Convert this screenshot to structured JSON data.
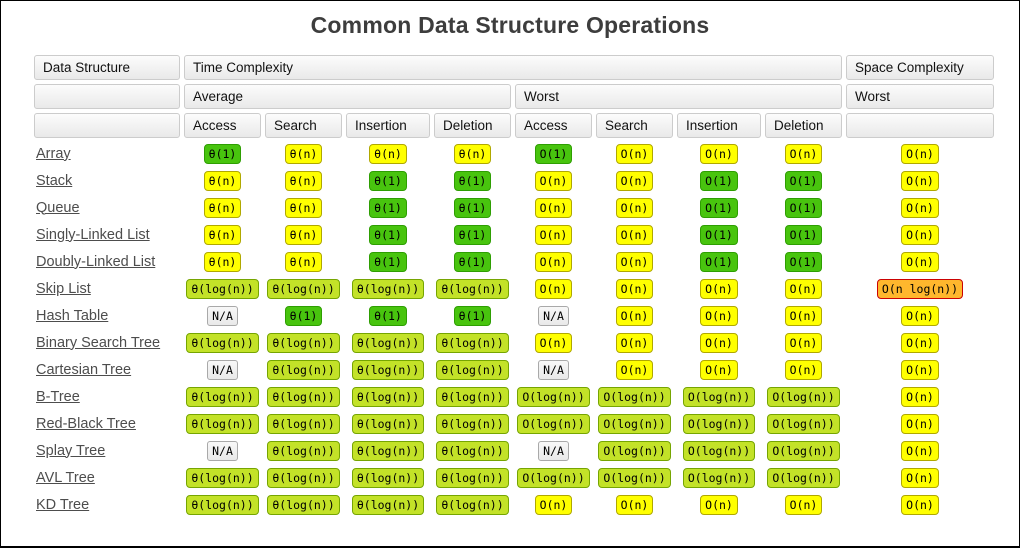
{
  "title": "Common Data Structure Operations",
  "colors": {
    "excellent_bg": "#48c40e",
    "excellent_border": "#2e9e02",
    "good_bg": "#c3e228",
    "good_border": "#76a501",
    "fair_bg": "#ffff00",
    "fair_border": "#b0a800",
    "bad_bg": "#ffb72d",
    "bad_border": "#cb0202",
    "na_bg": "#f0f0f0",
    "na_border": "#a9a9a9"
  },
  "table": {
    "header": {
      "data_structure": "Data Structure",
      "time_complexity": "Time Complexity",
      "space_complexity": "Space Complexity",
      "average": "Average",
      "worst": "Worst",
      "space_worst": "Worst",
      "operations": [
        "Access",
        "Search",
        "Insertion",
        "Deletion"
      ]
    },
    "rows": [
      {
        "name": "Array",
        "avg": [
          [
            "θ(1)",
            "excellent"
          ],
          [
            "θ(n)",
            "fair"
          ],
          [
            "θ(n)",
            "fair"
          ],
          [
            "θ(n)",
            "fair"
          ]
        ],
        "worst": [
          [
            "O(1)",
            "excellent"
          ],
          [
            "O(n)",
            "fair"
          ],
          [
            "O(n)",
            "fair"
          ],
          [
            "O(n)",
            "fair"
          ]
        ],
        "space": [
          "O(n)",
          "fair"
        ]
      },
      {
        "name": "Stack",
        "avg": [
          [
            "θ(n)",
            "fair"
          ],
          [
            "θ(n)",
            "fair"
          ],
          [
            "θ(1)",
            "excellent"
          ],
          [
            "θ(1)",
            "excellent"
          ]
        ],
        "worst": [
          [
            "O(n)",
            "fair"
          ],
          [
            "O(n)",
            "fair"
          ],
          [
            "O(1)",
            "excellent"
          ],
          [
            "O(1)",
            "excellent"
          ]
        ],
        "space": [
          "O(n)",
          "fair"
        ]
      },
      {
        "name": "Queue",
        "avg": [
          [
            "θ(n)",
            "fair"
          ],
          [
            "θ(n)",
            "fair"
          ],
          [
            "θ(1)",
            "excellent"
          ],
          [
            "θ(1)",
            "excellent"
          ]
        ],
        "worst": [
          [
            "O(n)",
            "fair"
          ],
          [
            "O(n)",
            "fair"
          ],
          [
            "O(1)",
            "excellent"
          ],
          [
            "O(1)",
            "excellent"
          ]
        ],
        "space": [
          "O(n)",
          "fair"
        ]
      },
      {
        "name": "Singly-Linked List",
        "avg": [
          [
            "θ(n)",
            "fair"
          ],
          [
            "θ(n)",
            "fair"
          ],
          [
            "θ(1)",
            "excellent"
          ],
          [
            "θ(1)",
            "excellent"
          ]
        ],
        "worst": [
          [
            "O(n)",
            "fair"
          ],
          [
            "O(n)",
            "fair"
          ],
          [
            "O(1)",
            "excellent"
          ],
          [
            "O(1)",
            "excellent"
          ]
        ],
        "space": [
          "O(n)",
          "fair"
        ]
      },
      {
        "name": "Doubly-Linked List",
        "avg": [
          [
            "θ(n)",
            "fair"
          ],
          [
            "θ(n)",
            "fair"
          ],
          [
            "θ(1)",
            "excellent"
          ],
          [
            "θ(1)",
            "excellent"
          ]
        ],
        "worst": [
          [
            "O(n)",
            "fair"
          ],
          [
            "O(n)",
            "fair"
          ],
          [
            "O(1)",
            "excellent"
          ],
          [
            "O(1)",
            "excellent"
          ]
        ],
        "space": [
          "O(n)",
          "fair"
        ]
      },
      {
        "name": "Skip List",
        "avg": [
          [
            "θ(log(n))",
            "good"
          ],
          [
            "θ(log(n))",
            "good"
          ],
          [
            "θ(log(n))",
            "good"
          ],
          [
            "θ(log(n))",
            "good"
          ]
        ],
        "worst": [
          [
            "O(n)",
            "fair"
          ],
          [
            "O(n)",
            "fair"
          ],
          [
            "O(n)",
            "fair"
          ],
          [
            "O(n)",
            "fair"
          ]
        ],
        "space": [
          "O(n log(n))",
          "bad"
        ]
      },
      {
        "name": "Hash Table",
        "avg": [
          [
            "N/A",
            "na"
          ],
          [
            "θ(1)",
            "excellent"
          ],
          [
            "θ(1)",
            "excellent"
          ],
          [
            "θ(1)",
            "excellent"
          ]
        ],
        "worst": [
          [
            "N/A",
            "na"
          ],
          [
            "O(n)",
            "fair"
          ],
          [
            "O(n)",
            "fair"
          ],
          [
            "O(n)",
            "fair"
          ]
        ],
        "space": [
          "O(n)",
          "fair"
        ]
      },
      {
        "name": "Binary Search Tree",
        "avg": [
          [
            "θ(log(n))",
            "good"
          ],
          [
            "θ(log(n))",
            "good"
          ],
          [
            "θ(log(n))",
            "good"
          ],
          [
            "θ(log(n))",
            "good"
          ]
        ],
        "worst": [
          [
            "O(n)",
            "fair"
          ],
          [
            "O(n)",
            "fair"
          ],
          [
            "O(n)",
            "fair"
          ],
          [
            "O(n)",
            "fair"
          ]
        ],
        "space": [
          "O(n)",
          "fair"
        ]
      },
      {
        "name": "Cartesian Tree",
        "avg": [
          [
            "N/A",
            "na"
          ],
          [
            "θ(log(n))",
            "good"
          ],
          [
            "θ(log(n))",
            "good"
          ],
          [
            "θ(log(n))",
            "good"
          ]
        ],
        "worst": [
          [
            "N/A",
            "na"
          ],
          [
            "O(n)",
            "fair"
          ],
          [
            "O(n)",
            "fair"
          ],
          [
            "O(n)",
            "fair"
          ]
        ],
        "space": [
          "O(n)",
          "fair"
        ]
      },
      {
        "name": "B-Tree",
        "avg": [
          [
            "θ(log(n))",
            "good"
          ],
          [
            "θ(log(n))",
            "good"
          ],
          [
            "θ(log(n))",
            "good"
          ],
          [
            "θ(log(n))",
            "good"
          ]
        ],
        "worst": [
          [
            "O(log(n))",
            "good"
          ],
          [
            "O(log(n))",
            "good"
          ],
          [
            "O(log(n))",
            "good"
          ],
          [
            "O(log(n))",
            "good"
          ]
        ],
        "space": [
          "O(n)",
          "fair"
        ]
      },
      {
        "name": "Red-Black Tree",
        "avg": [
          [
            "θ(log(n))",
            "good"
          ],
          [
            "θ(log(n))",
            "good"
          ],
          [
            "θ(log(n))",
            "good"
          ],
          [
            "θ(log(n))",
            "good"
          ]
        ],
        "worst": [
          [
            "O(log(n))",
            "good"
          ],
          [
            "O(log(n))",
            "good"
          ],
          [
            "O(log(n))",
            "good"
          ],
          [
            "O(log(n))",
            "good"
          ]
        ],
        "space": [
          "O(n)",
          "fair"
        ]
      },
      {
        "name": "Splay Tree",
        "avg": [
          [
            "N/A",
            "na"
          ],
          [
            "θ(log(n))",
            "good"
          ],
          [
            "θ(log(n))",
            "good"
          ],
          [
            "θ(log(n))",
            "good"
          ]
        ],
        "worst": [
          [
            "N/A",
            "na"
          ],
          [
            "O(log(n))",
            "good"
          ],
          [
            "O(log(n))",
            "good"
          ],
          [
            "O(log(n))",
            "good"
          ]
        ],
        "space": [
          "O(n)",
          "fair"
        ]
      },
      {
        "name": "AVL Tree",
        "avg": [
          [
            "θ(log(n))",
            "good"
          ],
          [
            "θ(log(n))",
            "good"
          ],
          [
            "θ(log(n))",
            "good"
          ],
          [
            "θ(log(n))",
            "good"
          ]
        ],
        "worst": [
          [
            "O(log(n))",
            "good"
          ],
          [
            "O(log(n))",
            "good"
          ],
          [
            "O(log(n))",
            "good"
          ],
          [
            "O(log(n))",
            "good"
          ]
        ],
        "space": [
          "O(n)",
          "fair"
        ]
      },
      {
        "name": "KD Tree",
        "avg": [
          [
            "θ(log(n))",
            "good"
          ],
          [
            "θ(log(n))",
            "good"
          ],
          [
            "θ(log(n))",
            "good"
          ],
          [
            "θ(log(n))",
            "good"
          ]
        ],
        "worst": [
          [
            "O(n)",
            "fair"
          ],
          [
            "O(n)",
            "fair"
          ],
          [
            "O(n)",
            "fair"
          ],
          [
            "O(n)",
            "fair"
          ]
        ],
        "space": [
          "O(n)",
          "fair"
        ]
      }
    ]
  }
}
